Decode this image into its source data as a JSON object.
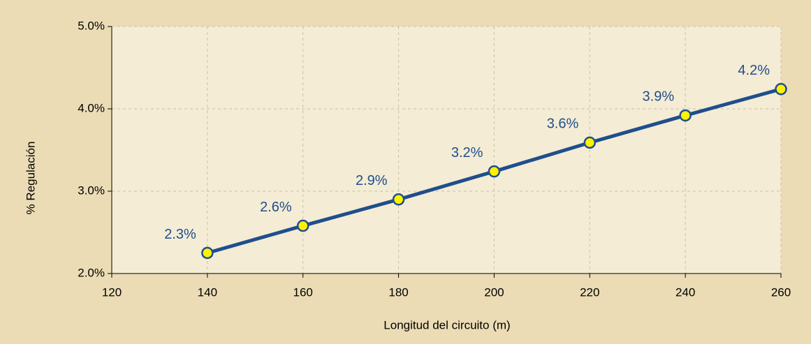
{
  "chart_data": {
    "type": "line",
    "y_label": "% Regulación",
    "x_label": "Longitud del circuito (m)",
    "x": [
      140,
      160,
      180,
      200,
      220,
      240,
      260
    ],
    "values": [
      2.25,
      2.58,
      2.9,
      3.24,
      3.59,
      3.92,
      4.24
    ],
    "value_labels": [
      "2.3%",
      "2.6%",
      "2.9%",
      "3.2%",
      "3.6%",
      "3.9%",
      "4.2%"
    ],
    "color": "#1f4e8c",
    "marker_color": "#fff200",
    "xlim": [
      120,
      260
    ],
    "xticks": [
      120,
      140,
      160,
      180,
      200,
      220,
      240,
      260
    ],
    "ylim": [
      2,
      5
    ],
    "yticks": [
      {
        "value": 2,
        "label": "2.0%"
      },
      {
        "value": 3,
        "label": "3.0%"
      },
      {
        "value": 4,
        "label": "4.0%"
      },
      {
        "value": 5,
        "label": "5.0%"
      }
    ],
    "grid": true
  }
}
